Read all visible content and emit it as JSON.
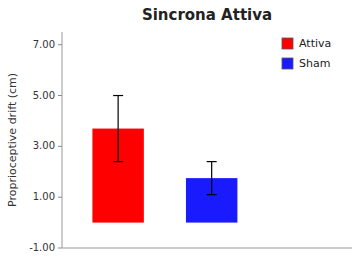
{
  "chart_data": {
    "type": "bar",
    "title": "Sincrona Attiva",
    "ylabel": "Proprioceptive drift (cm)",
    "categories": [
      "Attiva",
      "Sham"
    ],
    "values": [
      3.7,
      1.75
    ],
    "errors": [
      1.3,
      0.65
    ],
    "colors": [
      "#ff0000",
      "#1a1aff"
    ],
    "ylim": [
      -1.0,
      7.5
    ],
    "yticks": [
      {
        "value": -1.0,
        "label": "-1.00"
      },
      {
        "value": 1.0,
        "label": "1.00"
      },
      {
        "value": 3.0,
        "label": "3.00"
      },
      {
        "value": 5.0,
        "label": "5.00"
      },
      {
        "value": 7.0,
        "label": "7.00"
      }
    ],
    "grid": false,
    "legend": "upper right",
    "tick_labels": "y"
  }
}
